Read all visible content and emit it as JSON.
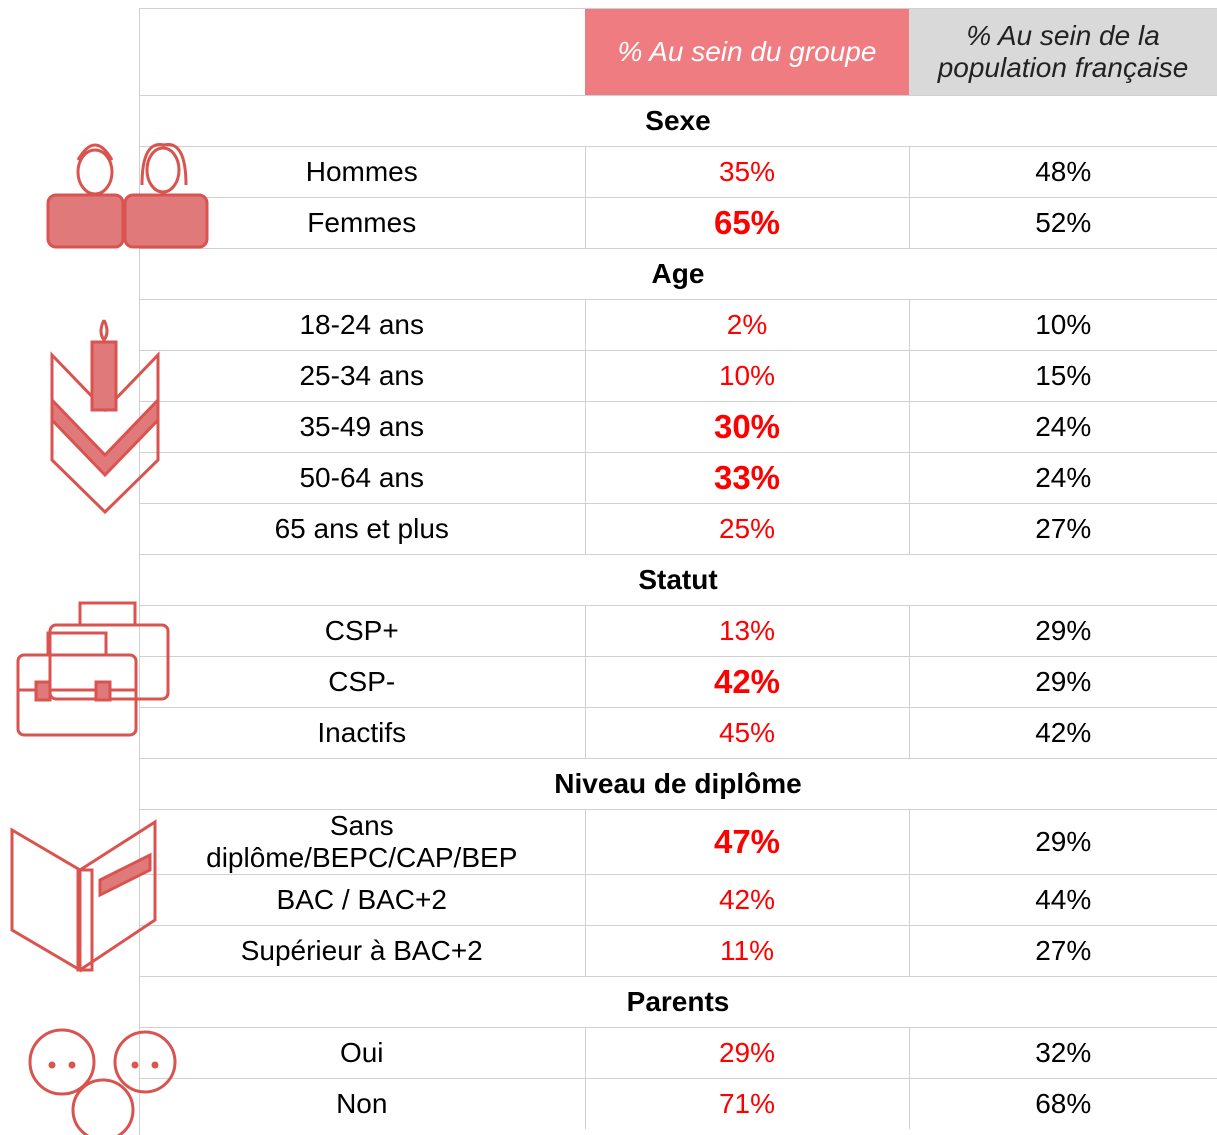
{
  "header": {
    "columns": [
      "% Au sein du groupe",
      "% Au sein de la population française"
    ]
  },
  "sections": [
    {
      "title": "Sexe",
      "rows": [
        {
          "label": "Hommes",
          "group": "35%",
          "population": "48%"
        },
        {
          "label": "Femmes",
          "group": "65%",
          "population": "52%",
          "bold": true
        }
      ]
    },
    {
      "title": "Age",
      "rows": [
        {
          "label": "18-24 ans",
          "group": "2%",
          "population": "10%"
        },
        {
          "label": "25-34 ans",
          "group": "10%",
          "population": "15%"
        },
        {
          "label": "35-49 ans",
          "group": "30%",
          "population": "24%",
          "bold": true
        },
        {
          "label": "50-64 ans",
          "group": "33%",
          "population": "24%",
          "bold": true
        },
        {
          "label": "65 ans et plus",
          "group": "25%",
          "population": "27%"
        }
      ]
    },
    {
      "title": "Statut",
      "rows": [
        {
          "label": "CSP+",
          "group": "13%",
          "population": "29%"
        },
        {
          "label": "CSP-",
          "group": "42%",
          "population": "29%",
          "bold": true
        },
        {
          "label": "Inactifs",
          "group": "45%",
          "population": "42%"
        }
      ]
    },
    {
      "title": "Niveau de diplôme",
      "rows": [
        {
          "label": "Sans diplôme/BEPC/CAP/BEP",
          "group": "47%",
          "population": "29%",
          "bold": true
        },
        {
          "label": "BAC / BAC+2",
          "group": "42%",
          "population": "44%"
        },
        {
          "label": "Supérieur à BAC+2",
          "group": "11%",
          "population": "27%"
        }
      ]
    },
    {
      "title": "Parents",
      "rows": [
        {
          "label": "Oui",
          "group": "29%",
          "population": "32%"
        },
        {
          "label": "Non",
          "group": "71%",
          "population": "68%"
        }
      ]
    }
  ]
}
